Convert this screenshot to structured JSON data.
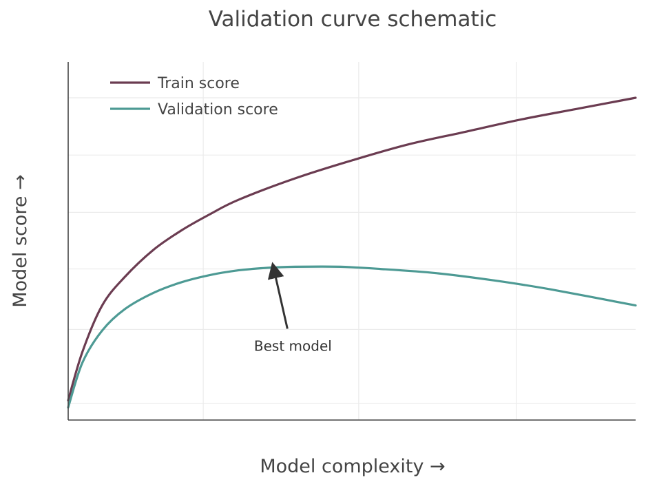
{
  "chart_data": {
    "type": "line",
    "title": "Validation curve schematic",
    "xlabel": "Model complexity →",
    "ylabel": "Model score →",
    "xlim": [
      0,
      10
    ],
    "ylim": [
      0,
      10
    ],
    "grid": true,
    "x_gridlines": [
      2.38,
      5.12,
      7.9
    ],
    "y_gridlines": [
      0.47,
      2.53,
      4.22,
      5.8,
      7.4,
      9.0
    ],
    "legend": {
      "placement": "top-left"
    },
    "series": [
      {
        "name": "Train score",
        "color": "#6b3c51",
        "x": [
          0,
          0.25,
          0.6,
          1.0,
          1.5,
          2.0,
          2.5,
          3.0,
          4.0,
          5.0,
          6.0,
          7.0,
          8.0,
          9.0,
          10.0
        ],
        "y": [
          0.55,
          1.9,
          3.2,
          4.0,
          4.75,
          5.3,
          5.75,
          6.15,
          6.75,
          7.25,
          7.7,
          8.05,
          8.4,
          8.7,
          9.0
        ]
      },
      {
        "name": "Validation score",
        "color": "#4d9a94",
        "x": [
          0,
          0.25,
          0.6,
          1.0,
          1.5,
          2.0,
          2.5,
          3.0,
          3.5,
          4.0,
          4.8,
          5.5,
          6.5,
          7.5,
          8.5,
          10.0
        ],
        "y": [
          0.35,
          1.6,
          2.5,
          3.1,
          3.55,
          3.85,
          4.05,
          4.18,
          4.25,
          4.28,
          4.28,
          4.22,
          4.1,
          3.9,
          3.65,
          3.2
        ]
      }
    ],
    "annotations": [
      {
        "text": "Best model",
        "arrow_to": {
          "x": 3.62,
          "y": 4.4
        },
        "label_at": {
          "x": 3.9,
          "y": 2.55
        }
      }
    ]
  }
}
